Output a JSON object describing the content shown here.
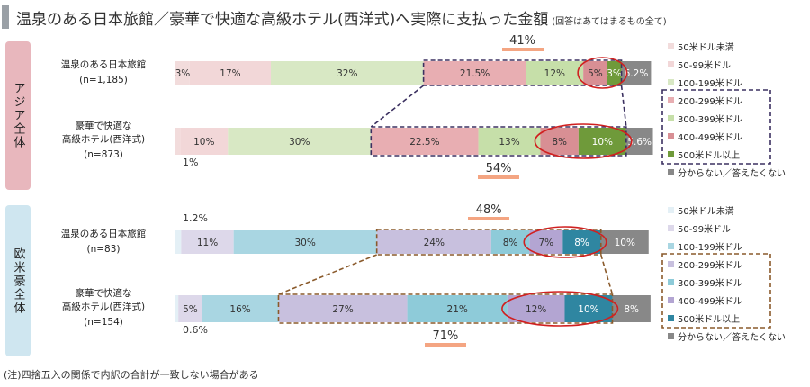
{
  "title": "温泉のある日本旅館／豪華で快適な高級ホテル(西洋式)へ実際に支払った金額",
  "title_note": "(回答はあてはまるもの全て)",
  "footnote": "(注)四捨五入の関係で内訳の合計が一致しない場合がある",
  "chart_data": {
    "type": "bar",
    "orientation": "horizontal-stacked-100",
    "series": [
      {
        "name": "50米ドル未満"
      },
      {
        "name": "50-99米ドル"
      },
      {
        "name": "100-199米ドル"
      },
      {
        "name": "200-299米ドル"
      },
      {
        "name": "300-399米ドル"
      },
      {
        "name": "400-499米ドル"
      },
      {
        "name": "500米ドル以上"
      },
      {
        "name": "分からない／答えたくない"
      }
    ],
    "groups": [
      {
        "name": "アジア全体",
        "color": "#e8b7bd",
        "bars": [
          {
            "label": "温泉のある日本旅館",
            "n": "(n=1,185)",
            "values": [
              3,
              17,
              32,
              21.5,
              12,
              5,
              3,
              6.2
            ],
            "labels": [
              "3%",
              "17%",
              "32%",
              "21.5%",
              "12%",
              "5%",
              "3%",
              "6.2%"
            ],
            "bracket_total": "41%"
          },
          {
            "label": "豪華で快適な 高級ホテル(西洋式)",
            "n": "(n=873)",
            "values": [
              1,
              10,
              30,
              22.5,
              13,
              8,
              10,
              5.6
            ],
            "labels": [
              "1%",
              "10%",
              "30%",
              "22.5%",
              "13%",
              "8%",
              "10%",
              "5.6%"
            ],
            "bracket_total": "54%"
          }
        ],
        "colors": [
          "#f2dcdc",
          "#f2d7d8",
          "#d8e8c4",
          "#e8aeb2",
          "#c6dfa9",
          "#d88f94",
          "#6f9a3a",
          "#888888"
        ]
      },
      {
        "name": "欧米豪全体",
        "color": "#cfe6f0",
        "bars": [
          {
            "label": "温泉のある日本旅館",
            "n": "(n=83)",
            "values": [
              1.2,
              11,
              30,
              24,
              8,
              7,
              8,
              10
            ],
            "labels": [
              "1.2%",
              "11%",
              "30%",
              "24%",
              "8%",
              "7%",
              "8%",
              "10%"
            ],
            "bracket_total": "48%"
          },
          {
            "label": "豪華で快適な 高級ホテル(西洋式)",
            "n": "(n=154)",
            "values": [
              0.6,
              5,
              16,
              27,
              21,
              12,
              10,
              8
            ],
            "labels": [
              "0.6%",
              "5%",
              "16%",
              "27%",
              "21%",
              "12%",
              "10%",
              "8%"
            ],
            "bracket_total": "71%"
          }
        ],
        "colors": [
          "#e4f0f6",
          "#ddd8ea",
          "#a9d6e2",
          "#c8c0de",
          "#8ecbd9",
          "#b3a5d2",
          "#2f86a1",
          "#888888"
        ]
      }
    ],
    "xlim": [
      0,
      100
    ],
    "legend_position": "right"
  }
}
